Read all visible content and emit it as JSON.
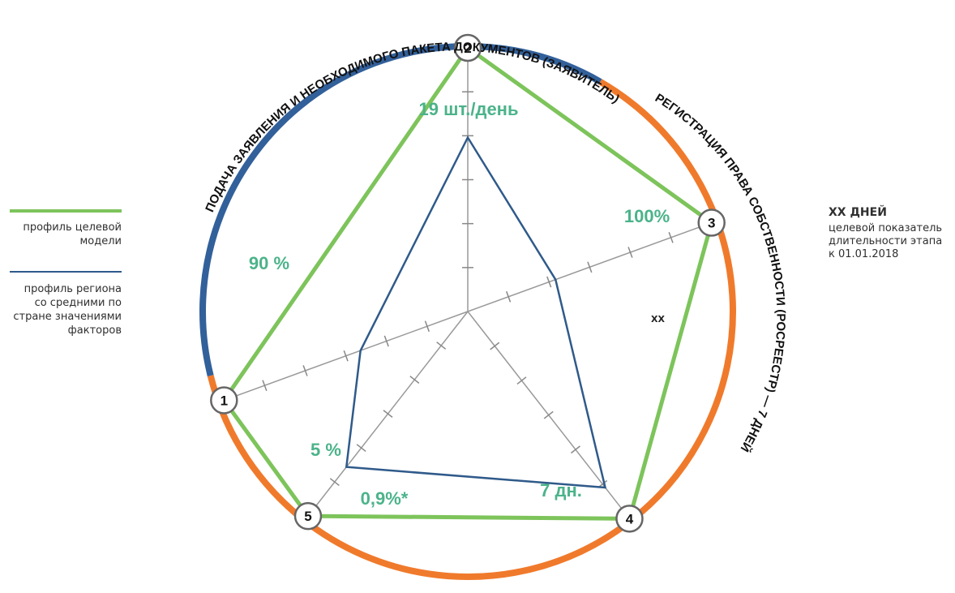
{
  "chart_data": {
    "type": "radar",
    "axes": [
      {
        "id": "1",
        "value_label": "90 %",
        "model": 1.0,
        "region": 0.44
      },
      {
        "id": "2",
        "value_label": "19 шт./день",
        "model": 1.0,
        "region": 0.66
      },
      {
        "id": "3",
        "value_label": "100%",
        "model": 1.0,
        "region": 0.36
      },
      {
        "id": "4",
        "value_label": "7 дн.",
        "model": 1.0,
        "region": 0.85
      },
      {
        "id": "5",
        "value_label": "5 %",
        "model": 1.0,
        "region": 0.76
      }
    ],
    "extra_label": "0,9%*",
    "series": [
      {
        "name": "профиль целевой модели",
        "color": "#7dc45b"
      },
      {
        "name": "профиль региона со средними по стране значениями факторов",
        "color": "#2f5a8a"
      }
    ],
    "ticks_per_axis": 5,
    "arcs": [
      {
        "label": "ПОДАЧА ЗАЯВЛЕНИЯ И НЕОБХОДИМОГО ПАКЕТА ДОКУМЕНТОВ (ЗАЯВИТЕЛЬ)",
        "color": "#32609a"
      },
      {
        "label": "РЕГИСТРАЦИЯ ПРАВА СОБСТВЕННОСТИ (РОСРЕЕСТР) — 7 ДНЕЙ",
        "color": "#f07a2c"
      }
    ]
  },
  "legend": {
    "model_label": "профиль целевой модели",
    "region_label": "профиль региона со средними по стране значениями факторов"
  },
  "info": {
    "heading": "XX ДНЕЙ",
    "line1": "целевой показатель",
    "line2": "длительности этапа",
    "line3": "к 01.01.2018"
  },
  "marker": "XX",
  "colors": {
    "accent_green": "#4bb38a",
    "model": "#7dc45b",
    "region": "#2f5a8a",
    "arc_blue": "#32609a",
    "arc_orange": "#f07a2c"
  }
}
